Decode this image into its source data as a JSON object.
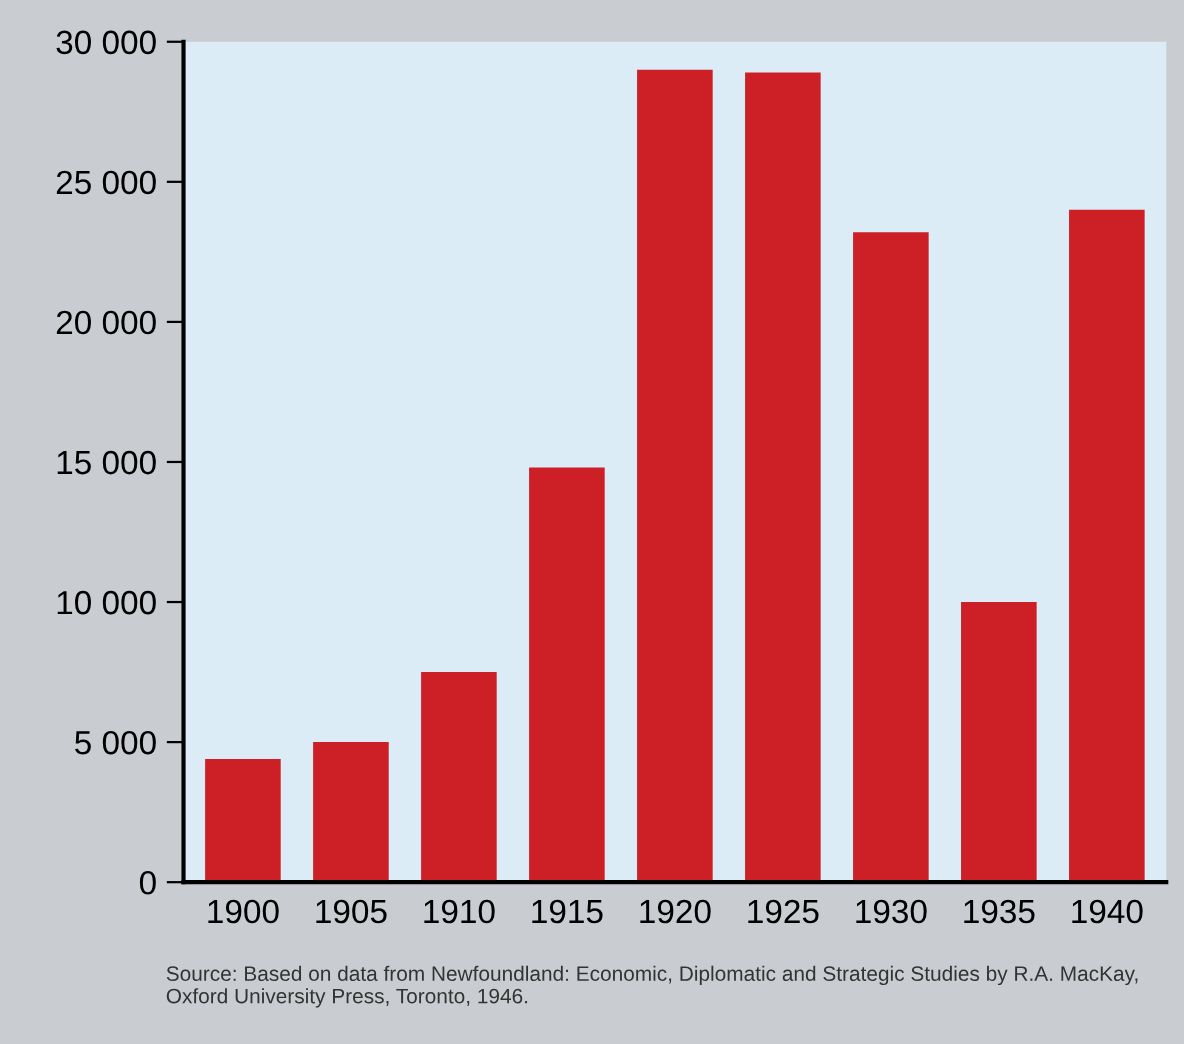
{
  "chart_data": {
    "type": "bar",
    "categories": [
      "1900",
      "1905",
      "1910",
      "1915",
      "1920",
      "1925",
      "1930",
      "1935",
      "1940"
    ],
    "values": [
      4400,
      5000,
      7500,
      14800,
      29000,
      28900,
      23200,
      10000,
      24000
    ],
    "color": "#cc1f26",
    "ylim": [
      0,
      30000
    ],
    "yticks": [
      0,
      {
        "value": 5000,
        "label": "5 000"
      },
      {
        "value": 10000,
        "label": "10 000"
      },
      {
        "value": 15000,
        "label": "15 000"
      },
      {
        "value": 20000,
        "label": "20 000"
      },
      {
        "value": 25000,
        "label": "25 000"
      },
      {
        "value": 30000,
        "label": "30 000"
      }
    ],
    "grid": false,
    "annotations": [
      "Source: Based on data from Newfoundland: Economic, Diplomatic and Strategic Studies by R.A. MacKay, Oxford University Press, Toronto, 1946."
    ]
  }
}
